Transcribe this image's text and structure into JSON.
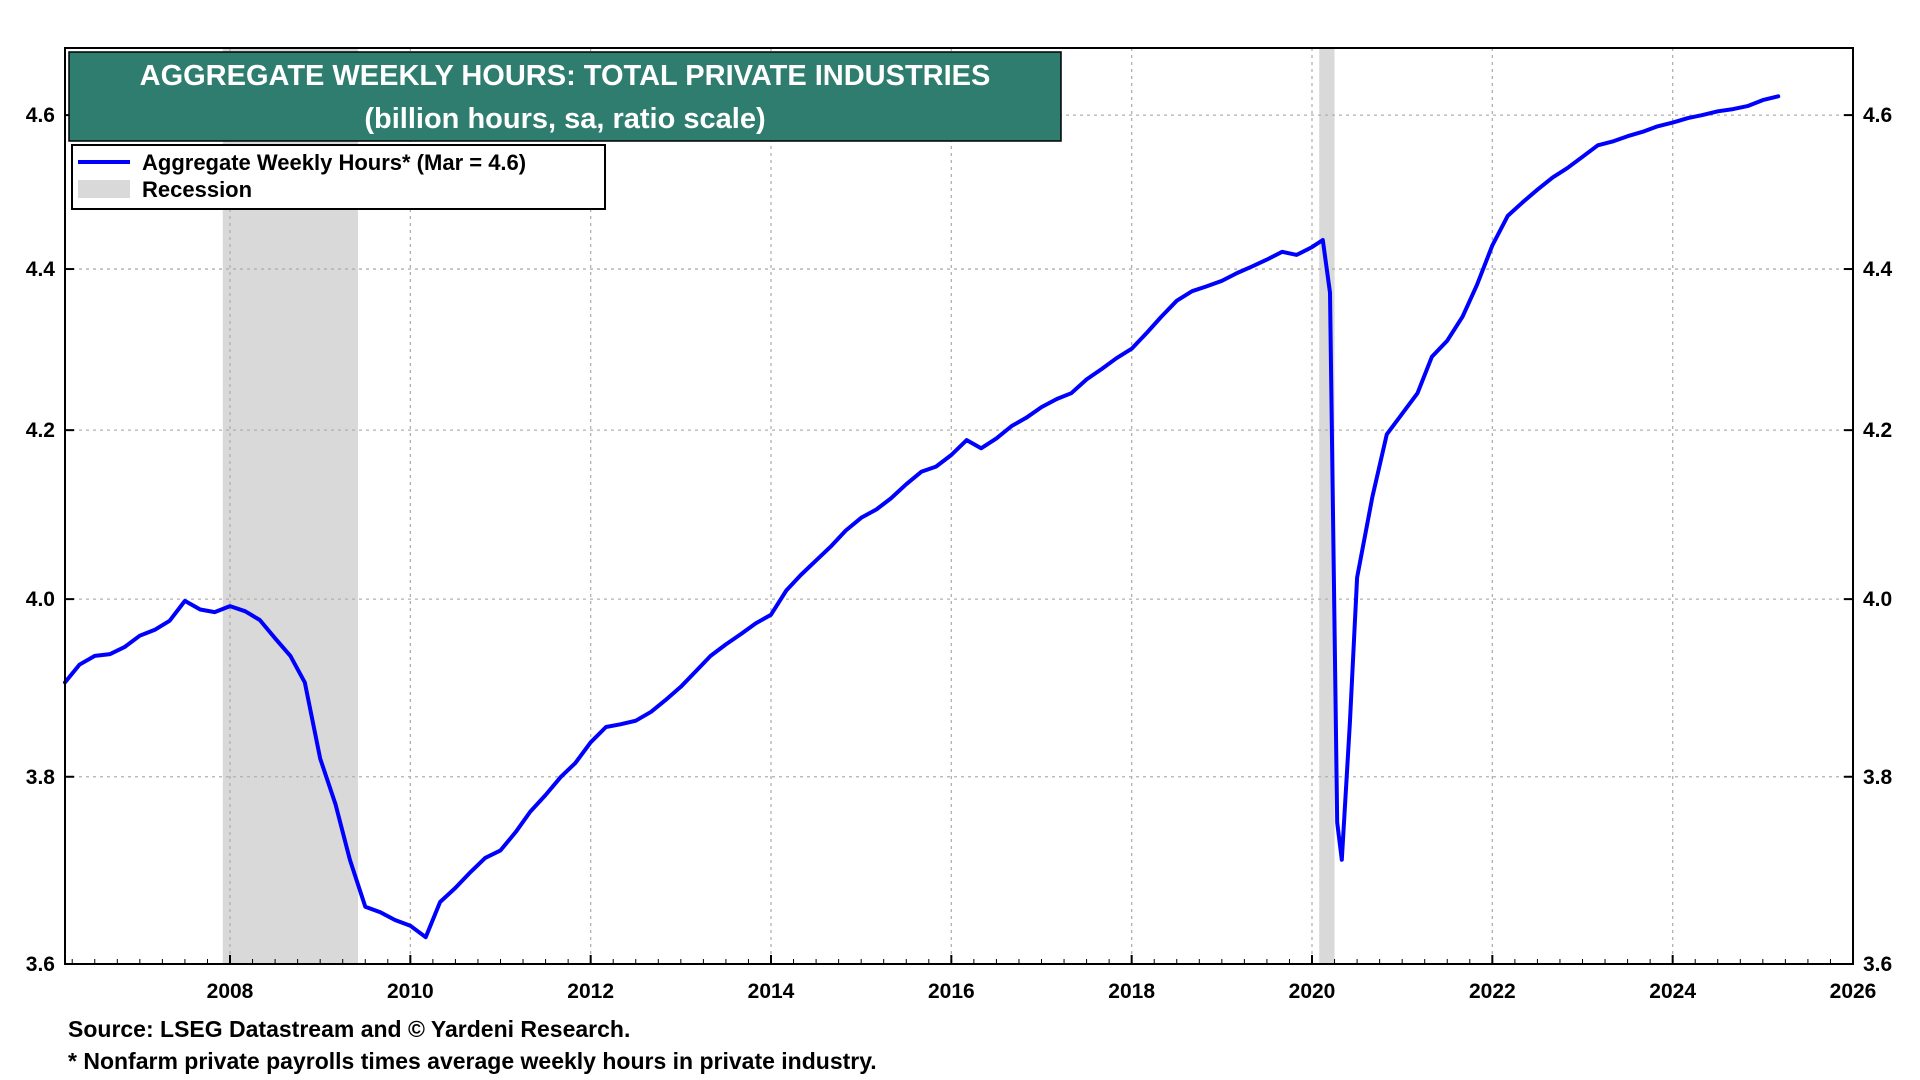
{
  "chart_data": {
    "type": "line",
    "title": "AGGREGATE WEEKLY HOURS: TOTAL PRIVATE INDUSTRIES",
    "subtitle": "(billion hours, sa, ratio scale)",
    "xlabel": "",
    "ylabel": "",
    "xlim": [
      2006.17,
      2026.0
    ],
    "ylim": [
      3.6,
      4.69
    ],
    "log_scale": true,
    "grid": true,
    "legend_position": "top-left",
    "x_ticks": [
      "2008",
      "2010",
      "2012",
      "2014",
      "2016",
      "2018",
      "2020",
      "2022",
      "2024",
      "2026"
    ],
    "y_ticks": [
      "3.6",
      "3.8",
      "4.0",
      "4.2",
      "4.4",
      "4.6"
    ],
    "series": [
      {
        "name": "Aggregate Weekly Hours* (Mar = 4.6)",
        "color": "#0000ff",
        "points": [
          [
            2006.17,
            3.905
          ],
          [
            2006.33,
            3.925
          ],
          [
            2006.5,
            3.935
          ],
          [
            2006.67,
            3.937
          ],
          [
            2006.83,
            3.945
          ],
          [
            2007.0,
            3.958
          ],
          [
            2007.17,
            3.965
          ],
          [
            2007.33,
            3.975
          ],
          [
            2007.5,
            3.998
          ],
          [
            2007.67,
            3.988
          ],
          [
            2007.83,
            3.985
          ],
          [
            2008.0,
            3.992
          ],
          [
            2008.17,
            3.986
          ],
          [
            2008.33,
            3.976
          ],
          [
            2008.5,
            3.955
          ],
          [
            2008.67,
            3.935
          ],
          [
            2008.83,
            3.905
          ],
          [
            2009.0,
            3.82
          ],
          [
            2009.17,
            3.77
          ],
          [
            2009.33,
            3.71
          ],
          [
            2009.5,
            3.66
          ],
          [
            2009.67,
            3.654
          ],
          [
            2009.83,
            3.646
          ],
          [
            2010.0,
            3.64
          ],
          [
            2010.17,
            3.628
          ],
          [
            2010.33,
            3.665
          ],
          [
            2010.5,
            3.68
          ],
          [
            2010.67,
            3.697
          ],
          [
            2010.83,
            3.712
          ],
          [
            2011.0,
            3.72
          ],
          [
            2011.17,
            3.74
          ],
          [
            2011.33,
            3.762
          ],
          [
            2011.5,
            3.78
          ],
          [
            2011.67,
            3.8
          ],
          [
            2011.83,
            3.815
          ],
          [
            2012.0,
            3.838
          ],
          [
            2012.17,
            3.855
          ],
          [
            2012.33,
            3.858
          ],
          [
            2012.5,
            3.862
          ],
          [
            2012.67,
            3.872
          ],
          [
            2012.83,
            3.885
          ],
          [
            2013.0,
            3.9
          ],
          [
            2013.17,
            3.918
          ],
          [
            2013.33,
            3.935
          ],
          [
            2013.5,
            3.948
          ],
          [
            2013.67,
            3.96
          ],
          [
            2013.83,
            3.972
          ],
          [
            2014.0,
            3.982
          ],
          [
            2014.17,
            4.01
          ],
          [
            2014.33,
            4.028
          ],
          [
            2014.5,
            4.045
          ],
          [
            2014.67,
            4.062
          ],
          [
            2014.83,
            4.08
          ],
          [
            2015.0,
            4.095
          ],
          [
            2015.17,
            4.105
          ],
          [
            2015.33,
            4.118
          ],
          [
            2015.5,
            4.135
          ],
          [
            2015.67,
            4.15
          ],
          [
            2015.83,
            4.156
          ],
          [
            2016.0,
            4.17
          ],
          [
            2016.17,
            4.188
          ],
          [
            2016.33,
            4.178
          ],
          [
            2016.5,
            4.19
          ],
          [
            2016.67,
            4.205
          ],
          [
            2016.83,
            4.215
          ],
          [
            2017.0,
            4.228
          ],
          [
            2017.17,
            4.238
          ],
          [
            2017.33,
            4.245
          ],
          [
            2017.5,
            4.262
          ],
          [
            2017.67,
            4.275
          ],
          [
            2017.83,
            4.288
          ],
          [
            2018.0,
            4.3
          ],
          [
            2018.17,
            4.32
          ],
          [
            2018.33,
            4.34
          ],
          [
            2018.5,
            4.36
          ],
          [
            2018.67,
            4.372
          ],
          [
            2018.83,
            4.378
          ],
          [
            2019.0,
            4.385
          ],
          [
            2019.17,
            4.395
          ],
          [
            2019.33,
            4.403
          ],
          [
            2019.5,
            4.412
          ],
          [
            2019.67,
            4.422
          ],
          [
            2019.83,
            4.418
          ],
          [
            2020.0,
            4.428
          ],
          [
            2020.12,
            4.437
          ],
          [
            2020.2,
            4.37
          ],
          [
            2020.28,
            3.75
          ],
          [
            2020.33,
            3.71
          ],
          [
            2020.42,
            3.86
          ],
          [
            2020.5,
            4.025
          ],
          [
            2020.67,
            4.12
          ],
          [
            2020.83,
            4.195
          ],
          [
            2021.0,
            4.22
          ],
          [
            2021.17,
            4.245
          ],
          [
            2021.33,
            4.29
          ],
          [
            2021.5,
            4.31
          ],
          [
            2021.67,
            4.34
          ],
          [
            2021.83,
            4.38
          ],
          [
            2022.0,
            4.43
          ],
          [
            2022.17,
            4.468
          ],
          [
            2022.33,
            4.485
          ],
          [
            2022.5,
            4.502
          ],
          [
            2022.67,
            4.518
          ],
          [
            2022.83,
            4.53
          ],
          [
            2023.0,
            4.545
          ],
          [
            2023.17,
            4.56
          ],
          [
            2023.33,
            4.565
          ],
          [
            2023.5,
            4.572
          ],
          [
            2023.67,
            4.578
          ],
          [
            2023.83,
            4.585
          ],
          [
            2024.0,
            4.59
          ],
          [
            2024.17,
            4.596
          ],
          [
            2024.33,
            4.6
          ],
          [
            2024.5,
            4.605
          ],
          [
            2024.67,
            4.608
          ],
          [
            2024.83,
            4.612
          ],
          [
            2025.0,
            4.62
          ],
          [
            2025.17,
            4.625
          ]
        ]
      }
    ],
    "recessions": [
      {
        "name": "Recession",
        "start": 2007.92,
        "end": 2009.42,
        "color": "#d9d9d9"
      },
      {
        "name": "Recession",
        "start": 2020.08,
        "end": 2020.25,
        "color": "#d9d9d9"
      }
    ]
  },
  "legend": {
    "series_label": "Aggregate Weekly Hours* (Mar = 4.6)",
    "recession_label": "Recession"
  },
  "colors": {
    "title_bg": "#2e7d6e",
    "line": "#0000ff",
    "recession": "#d9d9d9",
    "grid": "#b0b0b0"
  },
  "footer": {
    "source": "Source: LSEG Datastream and © Yardeni Research.",
    "note": "* Nonfarm private payrolls times average weekly hours in private industry."
  }
}
